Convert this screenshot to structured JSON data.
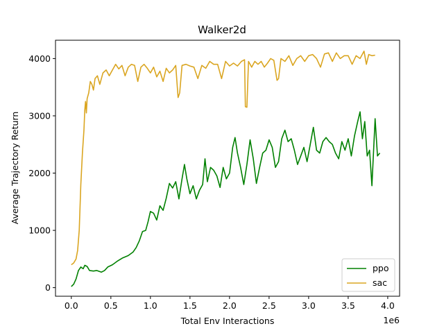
{
  "chart_data": {
    "type": "line",
    "title": "Walker2d",
    "xlabel": "Total Env Interactions",
    "ylabel": "Average Trajectory Return",
    "x_offset_label": "1e6",
    "xlim": [
      -0.2,
      4.15
    ],
    "ylim": [
      -150,
      4320
    ],
    "xticks": [
      0.0,
      0.5,
      1.0,
      1.5,
      2.0,
      2.5,
      3.0,
      3.5,
      4.0
    ],
    "xtick_labels": [
      "0.0",
      "0.5",
      "1.0",
      "1.5",
      "2.0",
      "2.5",
      "3.0",
      "3.5",
      "4.0"
    ],
    "yticks": [
      0,
      1000,
      2000,
      3000,
      4000
    ],
    "ytick_labels": [
      "0",
      "1000",
      "2000",
      "3000",
      "4000"
    ],
    "grid": false,
    "legend_position": "bottom-right",
    "series": [
      {
        "name": "ppo",
        "color": "#008000",
        "points": [
          [
            0.0,
            20
          ],
          [
            0.03,
            60
          ],
          [
            0.06,
            150
          ],
          [
            0.09,
            300
          ],
          [
            0.12,
            360
          ],
          [
            0.15,
            330
          ],
          [
            0.17,
            390
          ],
          [
            0.2,
            370
          ],
          [
            0.23,
            300
          ],
          [
            0.28,
            290
          ],
          [
            0.32,
            300
          ],
          [
            0.38,
            270
          ],
          [
            0.42,
            300
          ],
          [
            0.46,
            360
          ],
          [
            0.52,
            400
          ],
          [
            0.58,
            460
          ],
          [
            0.65,
            520
          ],
          [
            0.72,
            560
          ],
          [
            0.78,
            620
          ],
          [
            0.82,
            700
          ],
          [
            0.86,
            820
          ],
          [
            0.9,
            980
          ],
          [
            0.94,
            1000
          ],
          [
            0.97,
            1150
          ],
          [
            1.0,
            1330
          ],
          [
            1.04,
            1300
          ],
          [
            1.08,
            1180
          ],
          [
            1.12,
            1430
          ],
          [
            1.16,
            1350
          ],
          [
            1.2,
            1560
          ],
          [
            1.24,
            1820
          ],
          [
            1.28,
            1740
          ],
          [
            1.32,
            1850
          ],
          [
            1.36,
            1550
          ],
          [
            1.4,
            1900
          ],
          [
            1.43,
            2150
          ],
          [
            1.46,
            1900
          ],
          [
            1.5,
            1640
          ],
          [
            1.54,
            1780
          ],
          [
            1.58,
            1550
          ],
          [
            1.62,
            1700
          ],
          [
            1.66,
            1800
          ],
          [
            1.69,
            2250
          ],
          [
            1.72,
            1850
          ],
          [
            1.76,
            2100
          ],
          [
            1.8,
            2050
          ],
          [
            1.84,
            1950
          ],
          [
            1.88,
            1750
          ],
          [
            1.92,
            2100
          ],
          [
            1.96,
            1900
          ],
          [
            2.0,
            2000
          ],
          [
            2.04,
            2450
          ],
          [
            2.07,
            2620
          ],
          [
            2.1,
            2350
          ],
          [
            2.14,
            2100
          ],
          [
            2.18,
            1800
          ],
          [
            2.22,
            2150
          ],
          [
            2.26,
            2580
          ],
          [
            2.3,
            2250
          ],
          [
            2.34,
            1820
          ],
          [
            2.38,
            2100
          ],
          [
            2.42,
            2350
          ],
          [
            2.46,
            2400
          ],
          [
            2.5,
            2580
          ],
          [
            2.54,
            2450
          ],
          [
            2.58,
            2100
          ],
          [
            2.62,
            2200
          ],
          [
            2.66,
            2600
          ],
          [
            2.7,
            2750
          ],
          [
            2.74,
            2550
          ],
          [
            2.78,
            2600
          ],
          [
            2.82,
            2400
          ],
          [
            2.86,
            2150
          ],
          [
            2.9,
            2300
          ],
          [
            2.94,
            2450
          ],
          [
            2.98,
            2200
          ],
          [
            3.02,
            2500
          ],
          [
            3.06,
            2800
          ],
          [
            3.1,
            2400
          ],
          [
            3.14,
            2350
          ],
          [
            3.18,
            2550
          ],
          [
            3.22,
            2620
          ],
          [
            3.26,
            2550
          ],
          [
            3.3,
            2500
          ],
          [
            3.34,
            2350
          ],
          [
            3.38,
            2250
          ],
          [
            3.42,
            2550
          ],
          [
            3.46,
            2400
          ],
          [
            3.5,
            2600
          ],
          [
            3.54,
            2300
          ],
          [
            3.58,
            2650
          ],
          [
            3.62,
            2900
          ],
          [
            3.65,
            3070
          ],
          [
            3.68,
            2600
          ],
          [
            3.71,
            2900
          ],
          [
            3.74,
            2300
          ],
          [
            3.77,
            2400
          ],
          [
            3.8,
            1780
          ],
          [
            3.84,
            2950
          ],
          [
            3.87,
            2300
          ],
          [
            3.9,
            2350
          ]
        ]
      },
      {
        "name": "sac",
        "color": "#DAA520",
        "points": [
          [
            0.0,
            400
          ],
          [
            0.03,
            430
          ],
          [
            0.06,
            500
          ],
          [
            0.08,
            650
          ],
          [
            0.1,
            1000
          ],
          [
            0.12,
            1800
          ],
          [
            0.14,
            2350
          ],
          [
            0.16,
            2750
          ],
          [
            0.17,
            3100
          ],
          [
            0.18,
            3250
          ],
          [
            0.19,
            3050
          ],
          [
            0.2,
            3300
          ],
          [
            0.22,
            3400
          ],
          [
            0.24,
            3600
          ],
          [
            0.26,
            3550
          ],
          [
            0.28,
            3450
          ],
          [
            0.3,
            3650
          ],
          [
            0.33,
            3700
          ],
          [
            0.36,
            3550
          ],
          [
            0.4,
            3750
          ],
          [
            0.44,
            3800
          ],
          [
            0.48,
            3700
          ],
          [
            0.52,
            3800
          ],
          [
            0.56,
            3900
          ],
          [
            0.6,
            3820
          ],
          [
            0.64,
            3880
          ],
          [
            0.68,
            3700
          ],
          [
            0.72,
            3850
          ],
          [
            0.76,
            3900
          ],
          [
            0.8,
            3880
          ],
          [
            0.84,
            3600
          ],
          [
            0.88,
            3850
          ],
          [
            0.92,
            3900
          ],
          [
            0.96,
            3830
          ],
          [
            1.0,
            3750
          ],
          [
            1.04,
            3850
          ],
          [
            1.08,
            3680
          ],
          [
            1.12,
            3780
          ],
          [
            1.16,
            3600
          ],
          [
            1.2,
            3830
          ],
          [
            1.24,
            3750
          ],
          [
            1.28,
            3800
          ],
          [
            1.32,
            3880
          ],
          [
            1.35,
            3320
          ],
          [
            1.37,
            3400
          ],
          [
            1.4,
            3880
          ],
          [
            1.45,
            3900
          ],
          [
            1.5,
            3870
          ],
          [
            1.55,
            3850
          ],
          [
            1.6,
            3650
          ],
          [
            1.65,
            3880
          ],
          [
            1.7,
            3830
          ],
          [
            1.75,
            3950
          ],
          [
            1.8,
            3900
          ],
          [
            1.85,
            3900
          ],
          [
            1.9,
            3650
          ],
          [
            1.95,
            3950
          ],
          [
            2.0,
            3870
          ],
          [
            2.05,
            3920
          ],
          [
            2.1,
            3870
          ],
          [
            2.15,
            3950
          ],
          [
            2.19,
            3980
          ],
          [
            2.2,
            3160
          ],
          [
            2.22,
            3150
          ],
          [
            2.24,
            3950
          ],
          [
            2.28,
            3850
          ],
          [
            2.32,
            3950
          ],
          [
            2.36,
            3900
          ],
          [
            2.4,
            3950
          ],
          [
            2.44,
            3850
          ],
          [
            2.48,
            3920
          ],
          [
            2.52,
            4000
          ],
          [
            2.56,
            3970
          ],
          [
            2.6,
            3620
          ],
          [
            2.62,
            3650
          ],
          [
            2.65,
            4000
          ],
          [
            2.7,
            3950
          ],
          [
            2.75,
            4050
          ],
          [
            2.8,
            3880
          ],
          [
            2.85,
            4000
          ],
          [
            2.9,
            4050
          ],
          [
            2.95,
            3950
          ],
          [
            3.0,
            4050
          ],
          [
            3.05,
            4070
          ],
          [
            3.1,
            4000
          ],
          [
            3.15,
            3850
          ],
          [
            3.2,
            4080
          ],
          [
            3.25,
            4100
          ],
          [
            3.3,
            3950
          ],
          [
            3.35,
            4100
          ],
          [
            3.4,
            4000
          ],
          [
            3.45,
            4050
          ],
          [
            3.5,
            4050
          ],
          [
            3.55,
            3900
          ],
          [
            3.6,
            4050
          ],
          [
            3.65,
            4000
          ],
          [
            3.7,
            4130
          ],
          [
            3.73,
            3900
          ],
          [
            3.76,
            4070
          ],
          [
            3.8,
            4050
          ],
          [
            3.84,
            4060
          ]
        ]
      }
    ]
  }
}
